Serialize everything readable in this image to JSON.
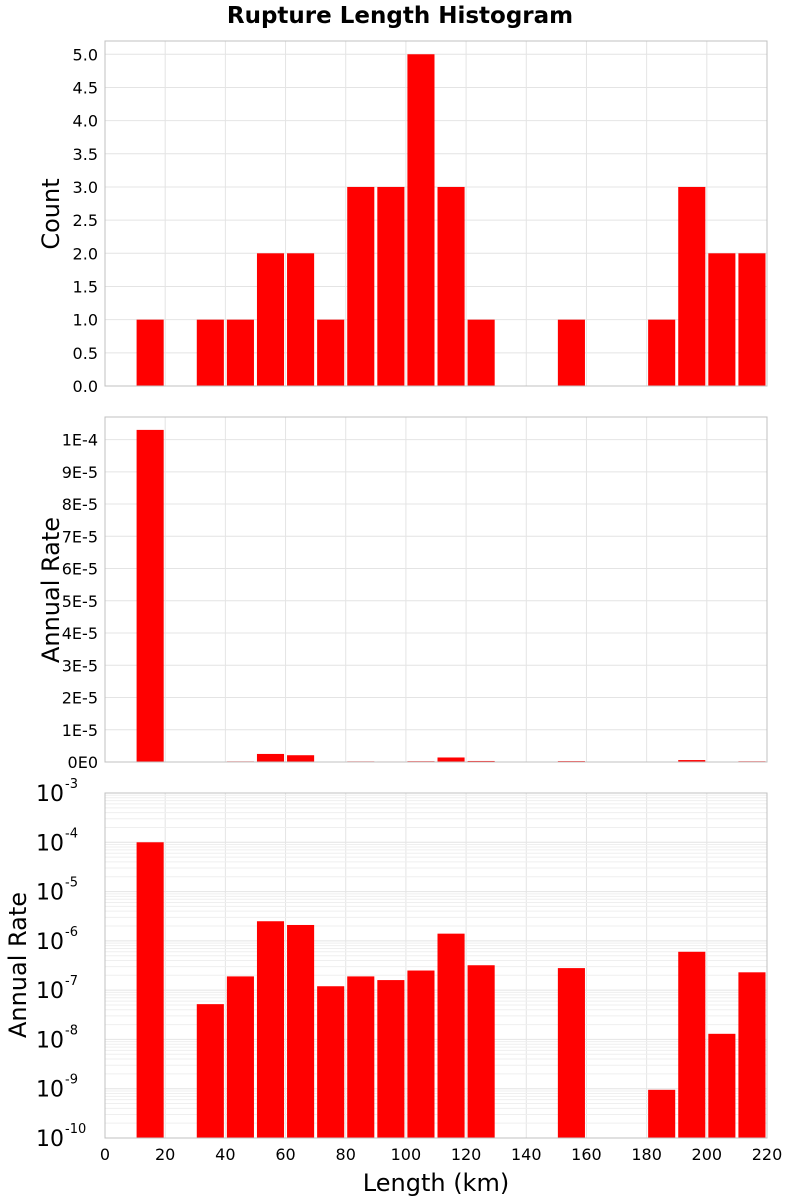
{
  "chart_data": {
    "type": "bar",
    "title": "Rupture Length Histogram",
    "xlabel": "Length (km)",
    "xlim": [
      0,
      220
    ],
    "x_ticks": [
      "0",
      "20",
      "40",
      "60",
      "80",
      "100",
      "120",
      "140",
      "160",
      "180",
      "200",
      "220"
    ],
    "bin_width": 10,
    "bin_centers": [
      15,
      25,
      35,
      45,
      55,
      65,
      75,
      85,
      95,
      105,
      115,
      125,
      135,
      145,
      155,
      165,
      175,
      185,
      195,
      205,
      215
    ],
    "bar_color": "#ff0000",
    "panels": [
      {
        "id": "count",
        "ylabel": "Count",
        "scale": "linear",
        "ylim": [
          0,
          5.2
        ],
        "y_ticks": [
          "0.0",
          "0.5",
          "1.0",
          "1.5",
          "2.0",
          "2.5",
          "3.0",
          "3.5",
          "4.0",
          "4.5",
          "5.0"
        ],
        "values": [
          1,
          0,
          1,
          1,
          2,
          2,
          1,
          3,
          3,
          5,
          3,
          1,
          0,
          0,
          1,
          0,
          0,
          1,
          3,
          2,
          2
        ]
      },
      {
        "id": "rate-linear",
        "ylabel": "Annual Rate",
        "scale": "linear",
        "ylim": [
          0,
          0.000107
        ],
        "y_ticks": [
          "0E0",
          "1E-5",
          "2E-5",
          "3E-5",
          "4E-5",
          "5E-5",
          "6E-5",
          "7E-5",
          "8E-5",
          "9E-5",
          "1E-4"
        ],
        "values": [
          0.000103,
          0,
          5e-08,
          2e-07,
          2.5e-06,
          2.1e-06,
          1.2e-07,
          2e-07,
          1.6e-07,
          2.5e-07,
          1.4e-06,
          3.2e-07,
          0,
          0,
          2.8e-07,
          0,
          0,
          1e-09,
          6e-07,
          1.3e-08,
          2.3e-07
        ]
      },
      {
        "id": "rate-log",
        "ylabel": "Annual Rate",
        "scale": "log",
        "ylim": [
          1e-10,
          0.001
        ],
        "y_tick_base": "10",
        "y_tick_exponents": [
          "-10",
          "-9",
          "-8",
          "-7",
          "-6",
          "-5",
          "-4",
          "-3"
        ],
        "values": [
          0.0001,
          0,
          5.2e-08,
          1.9e-07,
          2.5e-06,
          2.1e-06,
          1.2e-07,
          1.9e-07,
          1.6e-07,
          2.5e-07,
          1.4e-06,
          3.2e-07,
          0,
          0,
          2.8e-07,
          0,
          0,
          9.5e-10,
          6e-07,
          1.3e-08,
          2.3e-07
        ]
      }
    ]
  }
}
